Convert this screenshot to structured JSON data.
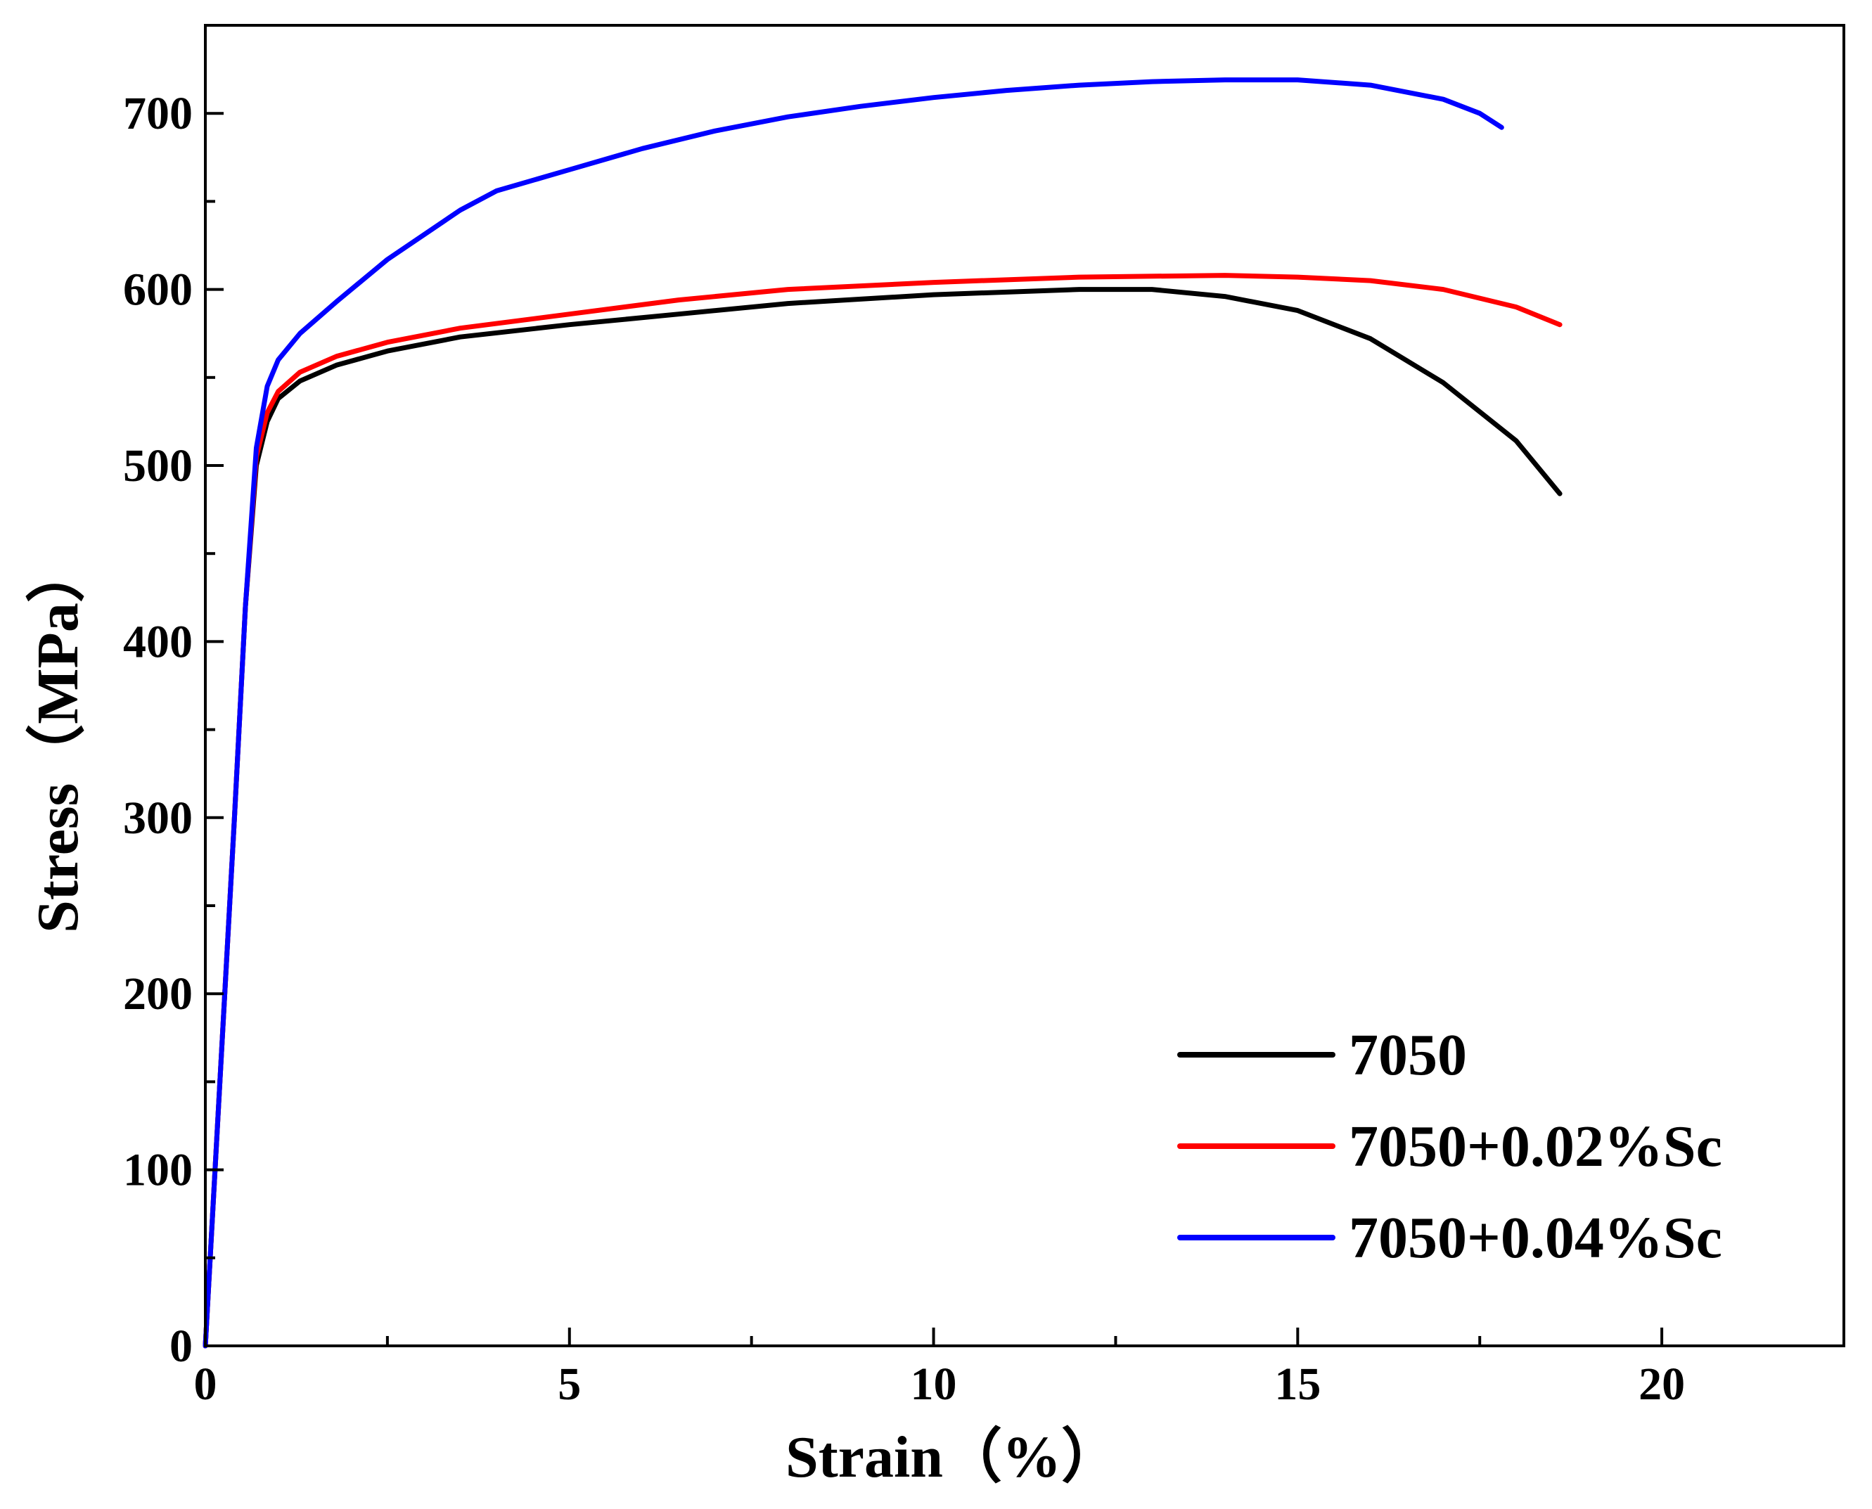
{
  "chart_data": {
    "type": "line",
    "title": "",
    "xlabel": "Strain（%）",
    "ylabel": "Stress（MPa）",
    "xlim": [
      0,
      22.5
    ],
    "ylim": [
      0,
      750
    ],
    "x_major_ticks": [
      0,
      5,
      10,
      15,
      20
    ],
    "x_minor_ticks": [
      2.5,
      7.5,
      12.5,
      17.5
    ],
    "y_major_ticks": [
      0,
      100,
      200,
      300,
      400,
      500,
      600,
      700
    ],
    "y_minor_ticks": [
      50,
      150,
      250,
      350,
      450,
      550,
      650
    ],
    "grid": false,
    "legend_position": "bottom-right",
    "series": [
      {
        "name": "7050",
        "color": "#000000",
        "points": [
          [
            0,
            0
          ],
          [
            0.2,
            150
          ],
          [
            0.4,
            300
          ],
          [
            0.55,
            420
          ],
          [
            0.7,
            500
          ],
          [
            0.85,
            525
          ],
          [
            1.0,
            538
          ],
          [
            1.3,
            548
          ],
          [
            1.8,
            557
          ],
          [
            2.5,
            565
          ],
          [
            3.5,
            573
          ],
          [
            5,
            580
          ],
          [
            6.5,
            586
          ],
          [
            8,
            592
          ],
          [
            10,
            597
          ],
          [
            12,
            600
          ],
          [
            13,
            600
          ],
          [
            14,
            596
          ],
          [
            15,
            588
          ],
          [
            16,
            572
          ],
          [
            17,
            547
          ],
          [
            18,
            514
          ],
          [
            18.6,
            484
          ]
        ]
      },
      {
        "name": "7050+0.02%Sc",
        "color": "#ff0000",
        "points": [
          [
            0,
            0
          ],
          [
            0.2,
            150
          ],
          [
            0.4,
            300
          ],
          [
            0.55,
            420
          ],
          [
            0.7,
            505
          ],
          [
            0.85,
            530
          ],
          [
            1.0,
            542
          ],
          [
            1.3,
            553
          ],
          [
            1.8,
            562
          ],
          [
            2.5,
            570
          ],
          [
            3.5,
            578
          ],
          [
            5,
            586
          ],
          [
            6.5,
            594
          ],
          [
            8,
            600
          ],
          [
            10,
            604
          ],
          [
            12,
            607
          ],
          [
            14,
            608
          ],
          [
            15,
            607
          ],
          [
            16,
            605
          ],
          [
            17,
            600
          ],
          [
            18,
            590
          ],
          [
            18.6,
            580
          ]
        ]
      },
      {
        "name": "7050+0.04%Sc",
        "color": "#0000ff",
        "points": [
          [
            0,
            0
          ],
          [
            0.2,
            150
          ],
          [
            0.4,
            300
          ],
          [
            0.55,
            420
          ],
          [
            0.7,
            510
          ],
          [
            0.85,
            545
          ],
          [
            1.0,
            560
          ],
          [
            1.3,
            575
          ],
          [
            1.8,
            593
          ],
          [
            2.5,
            617
          ],
          [
            3.5,
            645
          ],
          [
            4,
            656
          ],
          [
            5,
            668
          ],
          [
            6,
            680
          ],
          [
            7,
            690
          ],
          [
            8,
            698
          ],
          [
            9,
            704
          ],
          [
            10,
            709
          ],
          [
            11,
            713
          ],
          [
            12,
            716
          ],
          [
            13,
            718
          ],
          [
            14,
            719
          ],
          [
            15,
            719
          ],
          [
            16,
            716
          ],
          [
            17,
            708
          ],
          [
            17.5,
            700
          ],
          [
            17.8,
            692
          ]
        ]
      }
    ]
  }
}
